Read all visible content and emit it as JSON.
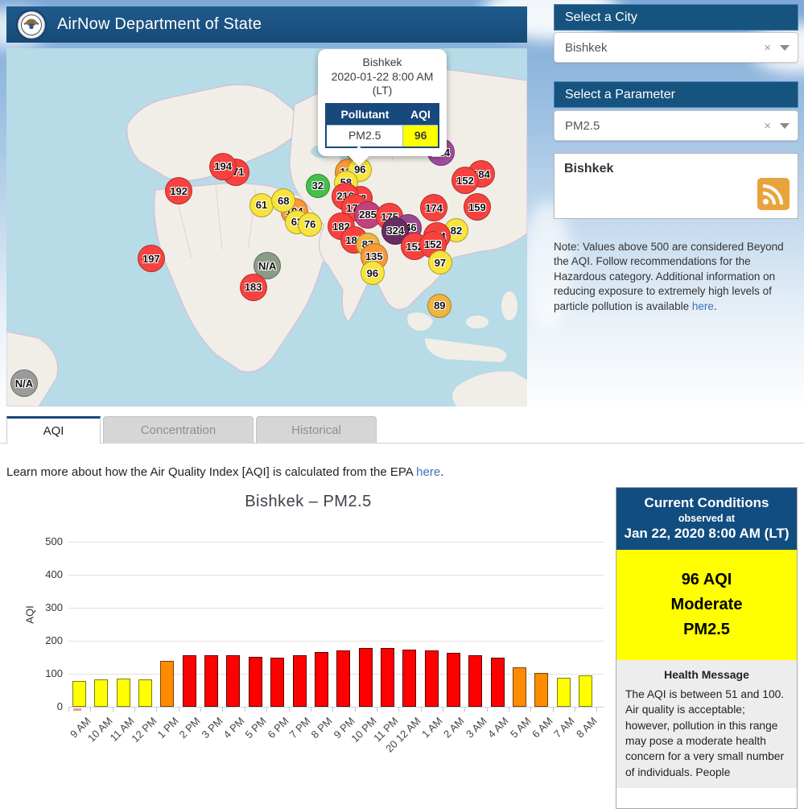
{
  "header": {
    "title": "AirNow Department of State"
  },
  "sidebar": {
    "city_panel": {
      "label": "Select a City",
      "value": "Bishkek"
    },
    "parameter_panel": {
      "label": "Select a Parameter",
      "value": "PM2.5"
    },
    "rss_box": {
      "city": "Bishkek"
    },
    "note": {
      "text": "Note: Values above 500 are considered Beyond the AQI. Follow recommendations for the Hazardous category. Additional information on reducing exposure to extremely high levels of particle pollution is available",
      "link": "here",
      "suffix": "."
    }
  },
  "map": {
    "popup": {
      "city": "Bishkek",
      "datetime": "2020-01-22 8:00 AM (LT)",
      "pollutant_header": "Pollutant",
      "aqi_header": "AQI",
      "pollutant": "PM2.5",
      "aqi": "96"
    },
    "markers": [
      {
        "value": "",
        "x": 66.9,
        "y": 27.6,
        "color": "#52b54b"
      },
      {
        "value": "171",
        "x": 44.0,
        "y": 34.6,
        "color": "#f8423f"
      },
      {
        "value": "194",
        "x": 41.6,
        "y": 33.0,
        "color": "#f8423f"
      },
      {
        "value": "192",
        "x": 33.1,
        "y": 39.8,
        "color": "#f8423f"
      },
      {
        "value": "197",
        "x": 27.8,
        "y": 58.7,
        "color": "#f8423f"
      },
      {
        "value": "61",
        "x": 49.0,
        "y": 43.8,
        "color": "#f8e43c"
      },
      {
        "value": "104",
        "x": 55.3,
        "y": 45.6,
        "color": "#f89838"
      },
      {
        "value": "68",
        "x": 53.2,
        "y": 42.5,
        "color": "#f8e43c"
      },
      {
        "value": "62",
        "x": 55.8,
        "y": 48.5,
        "color": "#f8e43c"
      },
      {
        "value": "76",
        "x": 58.3,
        "y": 49.2,
        "color": "#f8e43c"
      },
      {
        "value": "32",
        "x": 59.8,
        "y": 38.4,
        "color": "#44c04c"
      },
      {
        "value": "N/A",
        "x": 50.1,
        "y": 60.7,
        "color": "#8c9b85"
      },
      {
        "value": "183",
        "x": 47.4,
        "y": 66.7,
        "color": "#f8423f"
      },
      {
        "value": "N/A",
        "x": 3.4,
        "y": 93.5,
        "color": "#9b9b9b"
      },
      {
        "value": "136",
        "x": 65.7,
        "y": 34.6,
        "color": "#f89838"
      },
      {
        "value": "96",
        "x": 67.9,
        "y": 33.9,
        "color": "#f8e43c"
      },
      {
        "value": "58",
        "x": 65.2,
        "y": 37.5,
        "color": "#f8e43c"
      },
      {
        "value": "52",
        "x": 68.0,
        "y": 41.8,
        "color": "#f8423f"
      },
      {
        "value": "216",
        "x": 65.1,
        "y": 41.3,
        "color": "#f8423f"
      },
      {
        "value": "177",
        "x": 66.9,
        "y": 44.5,
        "color": "#f8423f"
      },
      {
        "value": "285",
        "x": 69.4,
        "y": 46.5,
        "color": "#c2417f"
      },
      {
        "value": "175",
        "x": 73.6,
        "y": 47.0,
        "color": "#f8423f"
      },
      {
        "value": "246",
        "x": 77.1,
        "y": 50.1,
        "color": "#984a8e"
      },
      {
        "value": "324",
        "x": 74.7,
        "y": 51.0,
        "color": "#662d60"
      },
      {
        "value": "182",
        "x": 64.3,
        "y": 49.7,
        "color": "#f8423f"
      },
      {
        "value": "186",
        "x": 66.8,
        "y": 53.5,
        "color": "#f8423f"
      },
      {
        "value": "87",
        "x": 69.4,
        "y": 54.8,
        "color": "#f0b53e"
      },
      {
        "value": "135",
        "x": 70.6,
        "y": 58.2,
        "color": "#f89838"
      },
      {
        "value": "96",
        "x": 70.3,
        "y": 62.7,
        "color": "#f8e43c"
      },
      {
        "value": "224",
        "x": 83.5,
        "y": 29.0,
        "color": "#a34d9e"
      },
      {
        "value": "184",
        "x": 91.2,
        "y": 35.1,
        "color": "#f8423f"
      },
      {
        "value": "152",
        "x": 88.1,
        "y": 36.9,
        "color": "#f8423f"
      },
      {
        "value": "174",
        "x": 82.1,
        "y": 44.5,
        "color": "#f8423f"
      },
      {
        "value": "159",
        "x": 90.4,
        "y": 44.3,
        "color": "#f8423f"
      },
      {
        "value": "82",
        "x": 86.4,
        "y": 50.8,
        "color": "#f8e43c"
      },
      {
        "value": "164",
        "x": 82.7,
        "y": 52.4,
        "color": "#f8423f"
      },
      {
        "value": "152",
        "x": 78.4,
        "y": 55.3,
        "color": "#f8423f"
      },
      {
        "value": "152",
        "x": 81.9,
        "y": 54.8,
        "color": "#f8423f"
      },
      {
        "value": "97",
        "x": 83.3,
        "y": 59.8,
        "color": "#f8e43c"
      },
      {
        "value": "89",
        "x": 83.2,
        "y": 71.9,
        "color": "#f0b53e"
      }
    ]
  },
  "tabs": [
    {
      "label": "AQI",
      "active": true
    },
    {
      "label": "Concentration",
      "active": false
    },
    {
      "label": "Historical",
      "active": false
    }
  ],
  "learn_more": {
    "text": "Learn more about how the Air Quality Index [AQI] is calculated from the EPA",
    "link": "here",
    "suffix": "."
  },
  "chart_data": {
    "type": "bar",
    "title": "Bishkek – PM2.5",
    "xlabel": "",
    "ylabel": "AQI",
    "ylim": [
      0,
      500
    ],
    "yticks": [
      0,
      100,
      200,
      300,
      400,
      500
    ],
    "grid": true,
    "categories": [
      "9 AM",
      "10 AM",
      "11 AM",
      "12 PM",
      "1 PM",
      "2 PM",
      "3 PM",
      "4 PM",
      "5 PM",
      "6 PM",
      "7 PM",
      "8 PM",
      "9 PM",
      "10 PM",
      "11 PM",
      "20 12 AM",
      "1 AM",
      "2 AM",
      "3 AM",
      "4 AM",
      "5 AM",
      "6 AM",
      "7 AM",
      "8 AM"
    ],
    "values": [
      78,
      82,
      85,
      82,
      140,
      155,
      155,
      155,
      152,
      150,
      155,
      165,
      170,
      177,
      177,
      172,
      170,
      163,
      155,
      150,
      120,
      103,
      89,
      96
    ],
    "colors": [
      "#ffff00",
      "#ffff00",
      "#ffff00",
      "#ffff00",
      "#ff8c00",
      "#fe0000",
      "#fe0000",
      "#fe0000",
      "#fe0000",
      "#fe0000",
      "#fe0000",
      "#fe0000",
      "#fe0000",
      "#fe0000",
      "#fe0000",
      "#fe0000",
      "#fe0000",
      "#fe0000",
      "#fe0000",
      "#fe0000",
      "#ff8c00",
      "#ff8c00",
      "#ffff00",
      "#ffff00"
    ]
  },
  "current_conditions": {
    "title": "Current Conditions",
    "observed_at": "observed at",
    "datetime": "Jan 22, 2020 8:00 AM (LT)",
    "aqi_line": "96 AQI",
    "category": "Moderate",
    "pollutant": "PM2.5",
    "health_title": "Health Message",
    "health_body": "The AQI is between 51 and 100. Air quality is acceptable; however, pollution in this range may pose a moderate health concern for a very small number of individuals. People"
  }
}
